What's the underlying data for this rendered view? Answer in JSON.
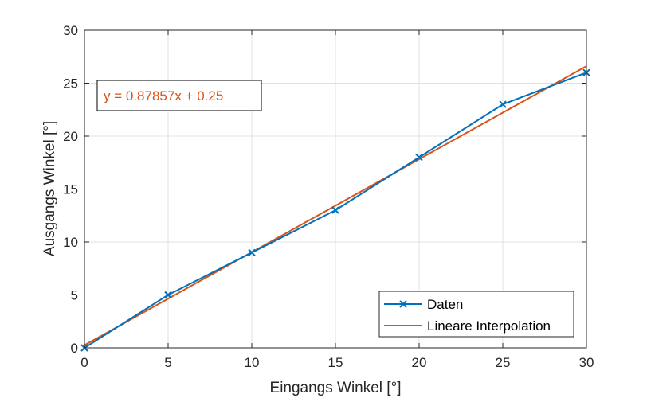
{
  "chart_data": {
    "type": "line",
    "title": "",
    "xlabel": "Eingangs Winkel [°]",
    "ylabel": "Ausgangs Winkel [°]",
    "xlim": [
      0,
      30
    ],
    "ylim": [
      0,
      30
    ],
    "xticks": [
      0,
      5,
      10,
      15,
      20,
      25,
      30
    ],
    "yticks": [
      0,
      5,
      10,
      15,
      20,
      25,
      30
    ],
    "grid": true,
    "legend_position": "bottom-right",
    "series": [
      {
        "name": "Daten",
        "color": "#0072BD",
        "marker": "x",
        "x": [
          0,
          5,
          10,
          15,
          20,
          25,
          30
        ],
        "y": [
          0,
          5,
          9,
          13,
          18,
          23,
          26
        ]
      },
      {
        "name": "Lineare Interpolation",
        "color": "#D95319",
        "marker": "none",
        "x": [
          0,
          30
        ],
        "y": [
          0.25,
          26.6071
        ]
      }
    ],
    "annotation": {
      "text": "y = 0.87857x + 0.25",
      "color": "#D95319"
    }
  }
}
